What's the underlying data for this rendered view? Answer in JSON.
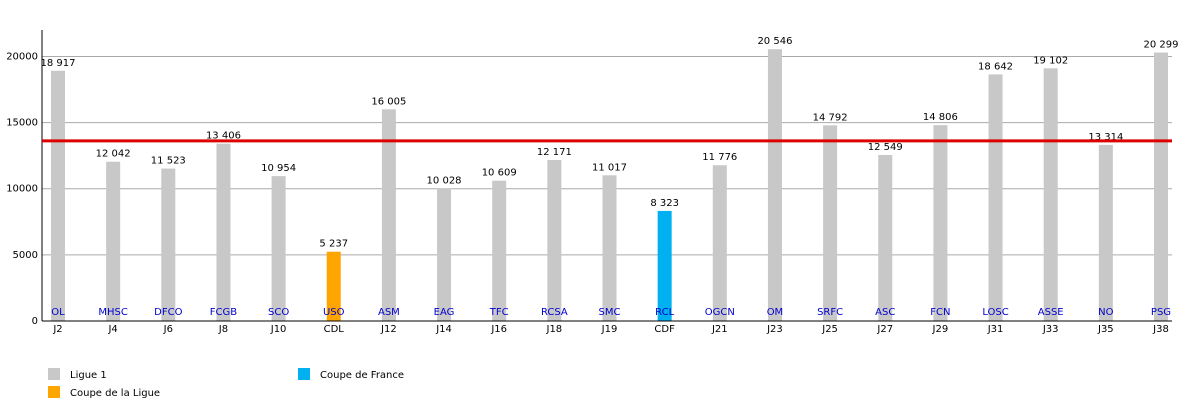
{
  "chart_data": {
    "type": "bar",
    "categories": [
      "J2",
      "J4",
      "J6",
      "J8",
      "J10",
      "CDL",
      "J12",
      "J14",
      "J16",
      "J18",
      "J19",
      "CDF",
      "J21",
      "J23",
      "J25",
      "J27",
      "J29",
      "J31",
      "J33",
      "J35",
      "J38"
    ],
    "opponents": [
      "OL",
      "MHSC",
      "DFCO",
      "FCGB",
      "SCO",
      "USO",
      "ASM",
      "EAG",
      "TFC",
      "RCSA",
      "SMC",
      "RCL",
      "OGCN",
      "OM",
      "SRFC",
      "ASC",
      "FCN",
      "LOSC",
      "ASSE",
      "NO",
      "PSG"
    ],
    "series": [
      {
        "name": "Ligue 1",
        "color": "#c8c8c8",
        "values": [
          18917,
          12042,
          11523,
          13406,
          10954,
          null,
          16005,
          10028,
          10609,
          12171,
          11017,
          null,
          11776,
          20546,
          14792,
          12549,
          14806,
          18642,
          19102,
          13314,
          20299
        ],
        "value_labels": [
          "18 917",
          "12 042",
          "11 523",
          "13 406",
          "10 954",
          null,
          "16 005",
          "10 028",
          "10 609",
          "12 171",
          "11 017",
          null,
          "11 776",
          "20 546",
          "14 792",
          "12 549",
          "14 806",
          "18 642",
          "19 102",
          "13 314",
          "20 299"
        ]
      },
      {
        "name": "Coupe de la Ligue",
        "color": "#ffa500",
        "values": [
          null,
          null,
          null,
          null,
          null,
          5237,
          null,
          null,
          null,
          null,
          null,
          null,
          null,
          null,
          null,
          null,
          null,
          null,
          null,
          null,
          null
        ],
        "value_labels": [
          null,
          null,
          null,
          null,
          null,
          "5 237",
          null,
          null,
          null,
          null,
          null,
          null,
          null,
          null,
          null,
          null,
          null,
          null,
          null,
          null,
          null
        ]
      },
      {
        "name": "Coupe de France",
        "color": "#00b0f0",
        "values": [
          null,
          null,
          null,
          null,
          null,
          null,
          null,
          null,
          null,
          null,
          null,
          8323,
          null,
          null,
          null,
          null,
          null,
          null,
          null,
          null,
          null
        ],
        "value_labels": [
          null,
          null,
          null,
          null,
          null,
          null,
          null,
          null,
          null,
          null,
          null,
          "8 323",
          null,
          null,
          null,
          null,
          null,
          null,
          null,
          null,
          null
        ]
      }
    ],
    "average_line": {
      "value": 13622,
      "color": "#dd0000"
    },
    "ylim": [
      0,
      22000
    ],
    "yticks": [
      0,
      5000,
      10000,
      15000,
      20000
    ],
    "grid": true
  }
}
